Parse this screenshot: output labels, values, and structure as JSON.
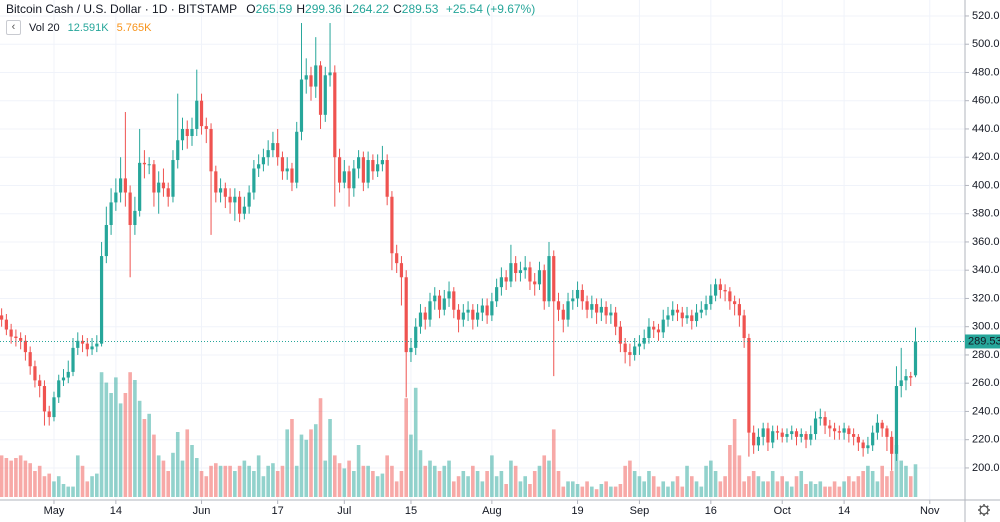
{
  "chart_data": {
    "type": "candlestick",
    "title": "Bitcoin Cash / U.S. Dollar · 1D · BITSTAMP",
    "ohlc": [
      {
        "key": "O",
        "text": "265.59"
      },
      {
        "key": "H",
        "text": "299.36"
      },
      {
        "key": "L",
        "text": "264.22"
      },
      {
        "key": "C",
        "text": "289.53"
      }
    ],
    "change": "+25.54 (+9.67%)",
    "volume_legend": {
      "name": "Vol 20",
      "value": "12.591K",
      "average": "5.765K"
    },
    "up_color": "#26a69a",
    "down_color": "#ef5350",
    "grid": true,
    "xlim": [
      -0.34,
      202.4
    ],
    "ylim": [
      177.3,
      531.3
    ],
    "vlim": [
      0,
      50
    ],
    "xticks": [
      {
        "value": 11,
        "label": "May"
      },
      {
        "value": 24,
        "label": "14"
      },
      {
        "value": 42,
        "label": "Jun"
      },
      {
        "value": 58,
        "label": "17"
      },
      {
        "value": 72,
        "label": "Jul"
      },
      {
        "value": 86,
        "label": "15"
      },
      {
        "value": 103,
        "label": "Aug"
      },
      {
        "value": 121,
        "label": "19"
      },
      {
        "value": 134,
        "label": "Sep"
      },
      {
        "value": 149,
        "label": "16"
      },
      {
        "value": 164,
        "label": "Oct"
      },
      {
        "value": 177,
        "label": "14"
      },
      {
        "value": 195,
        "label": "Nov"
      }
    ],
    "yticks": [
      {
        "value": 200,
        "label": "200.00"
      },
      {
        "value": 220,
        "label": "220.00"
      },
      {
        "value": 240,
        "label": "240.00"
      },
      {
        "value": 260,
        "label": "260.00"
      },
      {
        "value": 280,
        "label": "280.00"
      },
      {
        "value": 300,
        "label": "300.00"
      },
      {
        "value": 320,
        "label": "320.00"
      },
      {
        "value": 340,
        "label": "340.00"
      },
      {
        "value": 360,
        "label": "360.00"
      },
      {
        "value": 380,
        "label": "380.00"
      },
      {
        "value": 400,
        "label": "400.00"
      },
      {
        "value": 420,
        "label": "420.00"
      },
      {
        "value": 440,
        "label": "440.00"
      },
      {
        "value": 460,
        "label": "460.00"
      },
      {
        "value": 480,
        "label": "480.00"
      },
      {
        "value": 500,
        "label": "500.00"
      },
      {
        "value": 520,
        "label": "520.00"
      }
    ],
    "open": [
      308,
      305,
      298,
      293,
      292,
      290,
      282,
      272,
      262,
      258,
      240,
      236,
      250,
      262,
      264,
      268,
      285,
      290,
      288,
      284,
      286,
      288,
      350,
      372,
      388,
      395,
      405,
      395,
      372,
      382,
      416,
      415,
      415,
      395,
      402,
      398,
      392,
      418,
      432,
      440,
      435,
      440,
      460,
      442,
      440,
      410,
      395,
      398,
      392,
      388,
      392,
      380,
      385,
      395,
      412,
      415,
      420,
      425,
      430,
      420,
      410,
      412,
      402,
      438,
      475,
      478,
      470,
      485,
      450,
      478,
      480,
      420,
      402,
      410,
      398,
      412,
      420,
      402,
      418,
      410,
      415,
      418,
      392,
      352,
      345,
      335,
      282,
      285,
      300,
      310,
      305,
      318,
      322,
      312,
      320,
      325,
      312,
      305,
      310,
      312,
      305,
      310,
      315,
      308,
      318,
      328,
      335,
      332,
      345,
      338,
      340,
      342,
      332,
      330,
      340,
      318,
      350,
      318,
      312,
      305,
      318,
      320,
      326,
      318,
      312,
      316,
      310,
      314,
      308,
      310,
      300,
      288,
      282,
      280,
      286,
      288,
      292,
      300,
      298,
      296,
      305,
      308,
      312,
      310,
      306,
      308,
      304,
      310,
      312,
      316,
      322,
      330,
      326,
      325,
      318,
      316,
      308,
      292,
      225,
      216,
      222,
      228,
      218,
      226,
      225,
      222,
      224,
      226,
      222,
      224,
      220,
      224,
      235,
      236,
      230,
      228,
      226,
      225,
      228,
      224,
      222,
      218,
      214,
      216,
      225,
      232,
      228,
      222,
      210,
      258,
      262,
      265,
      265.59
    ],
    "high": [
      313,
      309,
      302,
      298,
      296,
      294,
      286,
      276,
      266,
      262,
      244,
      254,
      266,
      270,
      276,
      292,
      296,
      294,
      292,
      292,
      294,
      360,
      385,
      398,
      405,
      420,
      452,
      400,
      392,
      440,
      425,
      420,
      418,
      410,
      412,
      402,
      425,
      465,
      448,
      446,
      448,
      482,
      465,
      448,
      444,
      414,
      405,
      402,
      398,
      398,
      396,
      392,
      400,
      418,
      422,
      426,
      432,
      438,
      440,
      424,
      420,
      416,
      445,
      515,
      490,
      484,
      505,
      488,
      484,
      515,
      485,
      426,
      418,
      414,
      418,
      425,
      424,
      424,
      422,
      422,
      428,
      422,
      396,
      358,
      350,
      340,
      292,
      306,
      316,
      314,
      324,
      328,
      326,
      326,
      332,
      328,
      316,
      316,
      318,
      316,
      316,
      320,
      320,
      324,
      334,
      342,
      340,
      358,
      350,
      346,
      350,
      346,
      338,
      346,
      344,
      360,
      354,
      324,
      316,
      324,
      326,
      332,
      330,
      322,
      322,
      320,
      320,
      318,
      316,
      314,
      304,
      292,
      288,
      292,
      294,
      298,
      306,
      304,
      302,
      312,
      314,
      318,
      316,
      314,
      314,
      312,
      316,
      318,
      322,
      330,
      334,
      334,
      330,
      328,
      322,
      320,
      312,
      295,
      230,
      228,
      232,
      232,
      230,
      230,
      228,
      228,
      230,
      228,
      228,
      226,
      230,
      240,
      242,
      240,
      234,
      232,
      230,
      232,
      230,
      228,
      224,
      220,
      222,
      230,
      238,
      234,
      230,
      226,
      272,
      285,
      270,
      268,
      299.36
    ],
    "low": [
      300,
      294,
      288,
      286,
      284,
      276,
      266,
      257,
      250,
      230,
      230,
      233,
      246,
      258,
      260,
      265,
      280,
      282,
      279,
      280,
      282,
      286,
      345,
      365,
      382,
      388,
      385,
      335,
      365,
      378,
      405,
      408,
      385,
      380,
      392,
      385,
      388,
      412,
      425,
      426,
      428,
      435,
      436,
      430,
      365,
      388,
      388,
      384,
      380,
      375,
      374,
      376,
      380,
      390,
      406,
      410,
      414,
      420,
      414,
      404,
      404,
      396,
      398,
      432,
      465,
      460,
      462,
      440,
      445,
      470,
      385,
      395,
      398,
      385,
      392,
      405,
      396,
      398,
      404,
      406,
      410,
      386,
      340,
      338,
      315,
      250,
      275,
      280,
      295,
      298,
      300,
      312,
      306,
      308,
      314,
      306,
      296,
      300,
      304,
      298,
      300,
      304,
      302,
      304,
      314,
      322,
      326,
      328,
      332,
      332,
      334,
      326,
      322,
      326,
      312,
      314,
      265,
      304,
      296,
      300,
      312,
      314,
      312,
      306,
      306,
      302,
      304,
      302,
      302,
      294,
      282,
      274,
      272,
      276,
      280,
      284,
      288,
      292,
      290,
      292,
      300,
      304,
      304,
      300,
      302,
      298,
      300,
      306,
      308,
      312,
      318,
      320,
      318,
      312,
      308,
      300,
      285,
      208,
      210,
      212,
      216,
      212,
      214,
      220,
      218,
      218,
      220,
      216,
      218,
      214,
      216,
      220,
      230,
      224,
      222,
      220,
      220,
      220,
      218,
      216,
      212,
      208,
      210,
      212,
      220,
      222,
      212,
      198,
      205,
      250,
      255,
      258,
      264.22
    ],
    "close": [
      305,
      298,
      293,
      292,
      290,
      282,
      272,
      262,
      258,
      240,
      236,
      250,
      262,
      264,
      268,
      285,
      290,
      288,
      284,
      286,
      288,
      350,
      372,
      388,
      395,
      405,
      395,
      372,
      382,
      416,
      415,
      415,
      395,
      402,
      398,
      392,
      418,
      432,
      440,
      435,
      440,
      460,
      442,
      440,
      410,
      395,
      398,
      392,
      388,
      392,
      380,
      385,
      395,
      412,
      415,
      420,
      425,
      430,
      420,
      410,
      412,
      402,
      438,
      475,
      478,
      470,
      485,
      450,
      478,
      480,
      420,
      402,
      410,
      398,
      412,
      420,
      402,
      418,
      410,
      415,
      418,
      392,
      352,
      345,
      335,
      282,
      285,
      300,
      310,
      305,
      318,
      322,
      312,
      320,
      325,
      312,
      305,
      310,
      312,
      305,
      310,
      315,
      308,
      318,
      328,
      335,
      332,
      345,
      338,
      340,
      342,
      332,
      330,
      340,
      318,
      350,
      318,
      312,
      305,
      318,
      320,
      326,
      318,
      312,
      316,
      310,
      314,
      308,
      310,
      300,
      288,
      282,
      280,
      286,
      288,
      292,
      300,
      298,
      296,
      305,
      308,
      312,
      310,
      306,
      308,
      304,
      310,
      312,
      316,
      322,
      330,
      326,
      325,
      318,
      316,
      308,
      292,
      225,
      216,
      222,
      228,
      218,
      226,
      225,
      222,
      224,
      226,
      222,
      224,
      220,
      224,
      235,
      236,
      230,
      228,
      226,
      225,
      228,
      224,
      222,
      218,
      214,
      216,
      225,
      232,
      228,
      222,
      210,
      258,
      262,
      265,
      264,
      289.53
    ],
    "volume": [
      16,
      15,
      14,
      15,
      16,
      14,
      13,
      10,
      12,
      8,
      9,
      6,
      8,
      5,
      4,
      4,
      16,
      12,
      6,
      8,
      9,
      48,
      44,
      40,
      46,
      36,
      40,
      48,
      45,
      37,
      30,
      32,
      24,
      16,
      14,
      10,
      17,
      25,
      14,
      26,
      20,
      15,
      10,
      8,
      12,
      13,
      12,
      12,
      12,
      10,
      12,
      14,
      12,
      10,
      16,
      8,
      12,
      13,
      10,
      12,
      26,
      30,
      12,
      24,
      22,
      26,
      28,
      38,
      14,
      30,
      16,
      13,
      11,
      14,
      10,
      20,
      12,
      12,
      10,
      8,
      9,
      16,
      12,
      6,
      10,
      38,
      24,
      42,
      18,
      12,
      14,
      12,
      10,
      12,
      14,
      6,
      8,
      10,
      8,
      12,
      10,
      6,
      10,
      16,
      8,
      10,
      5,
      14,
      12,
      6,
      8,
      5,
      10,
      12,
      16,
      14,
      26,
      10,
      4,
      6,
      6,
      5,
      4,
      6,
      4,
      3,
      5,
      6,
      4,
      4,
      5,
      12,
      14,
      10,
      8,
      6,
      10,
      8,
      4,
      6,
      4,
      6,
      8,
      4,
      12,
      8,
      6,
      4,
      12,
      14,
      10,
      6,
      8,
      20,
      30,
      16,
      6,
      8,
      10,
      8,
      6,
      6,
      10,
      6,
      8,
      6,
      4,
      8,
      10,
      5,
      6,
      5,
      6,
      4,
      4,
      6,
      4,
      6,
      8,
      6,
      8,
      10,
      12,
      10,
      6,
      12,
      8,
      10,
      20,
      14,
      12,
      8,
      12.591
    ]
  }
}
